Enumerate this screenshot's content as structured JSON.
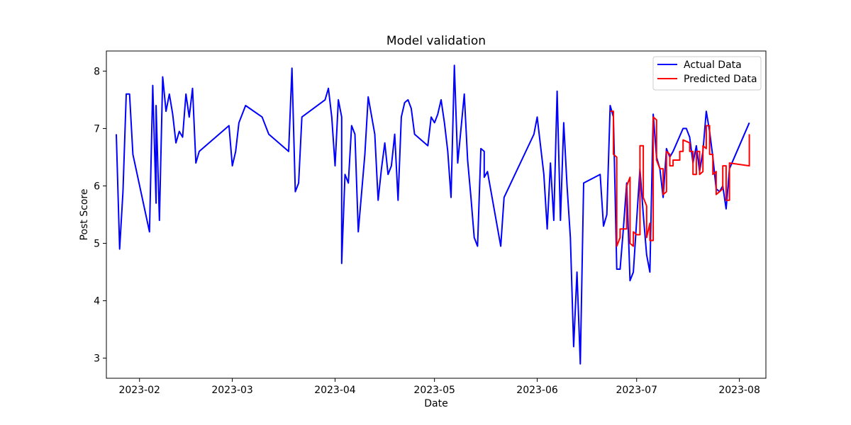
{
  "chart_data": {
    "type": "line",
    "title": "Model validation",
    "xlabel": "Date",
    "ylabel": "Post Score",
    "xlim": [
      "2023-01-22",
      "2023-08-09"
    ],
    "ylim": [
      2.65,
      8.35
    ],
    "x_ticks": [
      "2023-02-01",
      "2023-03-01",
      "2023-04-01",
      "2023-05-01",
      "2023-06-01",
      "2023-07-01",
      "2023-08-01"
    ],
    "x_tick_labels": [
      "2023-02",
      "2023-03",
      "2023-04",
      "2023-05",
      "2023-06",
      "2023-07",
      "2023-08"
    ],
    "y_ticks": [
      3,
      4,
      5,
      6,
      7,
      8
    ],
    "y_tick_labels": [
      "3",
      "4",
      "5",
      "6",
      "7",
      "8"
    ],
    "grid": false,
    "legend_position": "upper right",
    "series": [
      {
        "name": "Actual Data",
        "color": "#0000ff",
        "points": [
          [
            "2023-01-25",
            6.9
          ],
          [
            "2023-01-26",
            4.9
          ],
          [
            "2023-01-27",
            5.9
          ],
          [
            "2023-01-28",
            7.6
          ],
          [
            "2023-01-29",
            7.6
          ],
          [
            "2023-01-30",
            6.55
          ],
          [
            "2023-02-04",
            5.2
          ],
          [
            "2023-02-05",
            7.75
          ],
          [
            "2023-02-06",
            5.7
          ],
          [
            "2023-02-06",
            7.4
          ],
          [
            "2023-02-07",
            5.4
          ],
          [
            "2023-02-08",
            7.9
          ],
          [
            "2023-02-09",
            7.3
          ],
          [
            "2023-02-10",
            7.6
          ],
          [
            "2023-02-11",
            7.25
          ],
          [
            "2023-02-12",
            6.75
          ],
          [
            "2023-02-13",
            6.95
          ],
          [
            "2023-02-14",
            6.85
          ],
          [
            "2023-02-15",
            7.6
          ],
          [
            "2023-02-16",
            7.2
          ],
          [
            "2023-02-17",
            7.7
          ],
          [
            "2023-02-18",
            6.4
          ],
          [
            "2023-02-19",
            6.6
          ],
          [
            "2023-02-28",
            7.05
          ],
          [
            "2023-03-01",
            6.35
          ],
          [
            "2023-03-02",
            6.6
          ],
          [
            "2023-03-03",
            7.1
          ],
          [
            "2023-03-05",
            7.4
          ],
          [
            "2023-03-10",
            7.2
          ],
          [
            "2023-03-12",
            6.9
          ],
          [
            "2023-03-18",
            6.6
          ],
          [
            "2023-03-19",
            8.05
          ],
          [
            "2023-03-20",
            5.9
          ],
          [
            "2023-03-21",
            6.05
          ],
          [
            "2023-03-22",
            7.2
          ],
          [
            "2023-03-29",
            7.5
          ],
          [
            "2023-03-30",
            7.7
          ],
          [
            "2023-03-31",
            7.2
          ],
          [
            "2023-04-01",
            6.35
          ],
          [
            "2023-04-02",
            7.5
          ],
          [
            "2023-04-03",
            7.2
          ],
          [
            "2023-04-03",
            4.65
          ],
          [
            "2023-04-04",
            6.2
          ],
          [
            "2023-04-05",
            6.05
          ],
          [
            "2023-04-06",
            7.05
          ],
          [
            "2023-04-07",
            6.9
          ],
          [
            "2023-04-08",
            5.2
          ],
          [
            "2023-04-10",
            6.55
          ],
          [
            "2023-04-11",
            7.55
          ],
          [
            "2023-04-13",
            6.9
          ],
          [
            "2023-04-14",
            5.75
          ],
          [
            "2023-04-15",
            6.3
          ],
          [
            "2023-04-16",
            6.75
          ],
          [
            "2023-04-17",
            6.2
          ],
          [
            "2023-04-18",
            6.35
          ],
          [
            "2023-04-19",
            6.9
          ],
          [
            "2023-04-20",
            5.75
          ],
          [
            "2023-04-21",
            7.2
          ],
          [
            "2023-04-22",
            7.45
          ],
          [
            "2023-04-23",
            7.5
          ],
          [
            "2023-04-24",
            7.35
          ],
          [
            "2023-04-25",
            6.9
          ],
          [
            "2023-04-29",
            6.7
          ],
          [
            "2023-04-30",
            7.2
          ],
          [
            "2023-05-01",
            7.1
          ],
          [
            "2023-05-02",
            7.25
          ],
          [
            "2023-05-03",
            7.5
          ],
          [
            "2023-05-04",
            7.1
          ],
          [
            "2023-05-05",
            6.6
          ],
          [
            "2023-05-06",
            5.8
          ],
          [
            "2023-05-07",
            8.1
          ],
          [
            "2023-05-08",
            6.4
          ],
          [
            "2023-05-09",
            7.0
          ],
          [
            "2023-05-10",
            7.6
          ],
          [
            "2023-05-11",
            6.45
          ],
          [
            "2023-05-12",
            5.8
          ],
          [
            "2023-05-13",
            5.1
          ],
          [
            "2023-05-14",
            4.95
          ],
          [
            "2023-05-15",
            6.65
          ],
          [
            "2023-05-16",
            6.6
          ],
          [
            "2023-05-16",
            6.15
          ],
          [
            "2023-05-17",
            6.25
          ],
          [
            "2023-05-21",
            4.95
          ],
          [
            "2023-05-22",
            5.8
          ],
          [
            "2023-05-31",
            6.9
          ],
          [
            "2023-06-01",
            7.2
          ],
          [
            "2023-06-03",
            6.2
          ],
          [
            "2023-06-04",
            5.25
          ],
          [
            "2023-06-05",
            6.4
          ],
          [
            "2023-06-06",
            5.4
          ],
          [
            "2023-06-07",
            7.65
          ],
          [
            "2023-06-08",
            5.4
          ],
          [
            "2023-06-09",
            7.1
          ],
          [
            "2023-06-10",
            6.0
          ],
          [
            "2023-06-11",
            5.1
          ],
          [
            "2023-06-12",
            3.2
          ],
          [
            "2023-06-13",
            4.5
          ],
          [
            "2023-06-14",
            2.9
          ],
          [
            "2023-06-15",
            6.05
          ],
          [
            "2023-06-20",
            6.2
          ],
          [
            "2023-06-21",
            5.3
          ],
          [
            "2023-06-22",
            5.5
          ],
          [
            "2023-06-23",
            7.4
          ],
          [
            "2023-06-24",
            7.2
          ],
          [
            "2023-06-25",
            4.55
          ],
          [
            "2023-06-26",
            4.55
          ],
          [
            "2023-06-27",
            5.25
          ],
          [
            "2023-06-28",
            6.05
          ],
          [
            "2023-06-29",
            4.35
          ],
          [
            "2023-06-30",
            4.5
          ],
          [
            "2023-07-02",
            6.3
          ],
          [
            "2023-07-03",
            5.5
          ],
          [
            "2023-07-04",
            4.8
          ],
          [
            "2023-07-05",
            4.5
          ],
          [
            "2023-07-06",
            7.25
          ],
          [
            "2023-07-07",
            6.5
          ],
          [
            "2023-07-08",
            6.3
          ],
          [
            "2023-07-09",
            5.8
          ],
          [
            "2023-07-10",
            6.65
          ],
          [
            "2023-07-11",
            6.5
          ],
          [
            "2023-07-12",
            6.6
          ],
          [
            "2023-07-15",
            7.0
          ],
          [
            "2023-07-16",
            7.0
          ],
          [
            "2023-07-17",
            6.85
          ],
          [
            "2023-07-18",
            6.4
          ],
          [
            "2023-07-19",
            6.7
          ],
          [
            "2023-07-20",
            6.25
          ],
          [
            "2023-07-21",
            6.6
          ],
          [
            "2023-07-22",
            7.3
          ],
          [
            "2023-07-23",
            6.95
          ],
          [
            "2023-07-24",
            6.5
          ],
          [
            "2023-07-25",
            5.95
          ],
          [
            "2023-07-26",
            5.9
          ],
          [
            "2023-07-27",
            6.0
          ],
          [
            "2023-07-28",
            5.6
          ],
          [
            "2023-07-29",
            6.3
          ],
          [
            "2023-08-04",
            7.1
          ]
        ]
      },
      {
        "name": "Predicted Data",
        "color": "#ff0000",
        "points": [
          [
            "2023-06-23",
            7.3
          ],
          [
            "2023-06-24",
            7.3
          ],
          [
            "2023-06-24",
            6.55
          ],
          [
            "2023-06-25",
            6.5
          ],
          [
            "2023-06-25",
            4.95
          ],
          [
            "2023-06-26",
            5.1
          ],
          [
            "2023-06-26",
            5.25
          ],
          [
            "2023-06-27",
            5.25
          ],
          [
            "2023-06-27",
            5.25
          ],
          [
            "2023-06-28",
            5.25
          ],
          [
            "2023-06-28",
            6.0
          ],
          [
            "2023-06-29",
            6.15
          ],
          [
            "2023-06-29",
            5.0
          ],
          [
            "2023-06-30",
            4.95
          ],
          [
            "2023-06-30",
            5.2
          ],
          [
            "2023-07-01",
            5.15
          ],
          [
            "2023-07-02",
            5.15
          ],
          [
            "2023-07-02",
            6.7
          ],
          [
            "2023-07-03",
            6.7
          ],
          [
            "2023-07-03",
            5.8
          ],
          [
            "2023-07-04",
            5.65
          ],
          [
            "2023-07-04",
            5.1
          ],
          [
            "2023-07-05",
            5.35
          ],
          [
            "2023-07-05",
            5.3
          ],
          [
            "2023-07-05",
            5.05
          ],
          [
            "2023-07-06",
            5.05
          ],
          [
            "2023-07-06",
            7.2
          ],
          [
            "2023-07-07",
            7.15
          ],
          [
            "2023-07-07",
            6.45
          ],
          [
            "2023-07-08",
            6.3
          ],
          [
            "2023-07-09",
            6.3
          ],
          [
            "2023-07-09",
            5.85
          ],
          [
            "2023-07-10",
            5.9
          ],
          [
            "2023-07-10",
            6.6
          ],
          [
            "2023-07-11",
            6.55
          ],
          [
            "2023-07-11",
            6.35
          ],
          [
            "2023-07-12",
            6.35
          ],
          [
            "2023-07-12",
            6.45
          ],
          [
            "2023-07-13",
            6.45
          ],
          [
            "2023-07-14",
            6.45
          ],
          [
            "2023-07-14",
            6.6
          ],
          [
            "2023-07-15",
            6.6
          ],
          [
            "2023-07-15",
            6.8
          ],
          [
            "2023-07-17",
            6.75
          ],
          [
            "2023-07-17",
            6.6
          ],
          [
            "2023-07-18",
            6.6
          ],
          [
            "2023-07-18",
            6.2
          ],
          [
            "2023-07-19",
            6.2
          ],
          [
            "2023-07-19",
            6.6
          ],
          [
            "2023-07-20",
            6.6
          ],
          [
            "2023-07-20",
            6.2
          ],
          [
            "2023-07-21",
            6.25
          ],
          [
            "2023-07-21",
            6.7
          ],
          [
            "2023-07-22",
            6.65
          ],
          [
            "2023-07-22",
            7.05
          ],
          [
            "2023-07-23",
            7.05
          ],
          [
            "2023-07-23",
            6.55
          ],
          [
            "2023-07-24",
            6.55
          ],
          [
            "2023-07-24",
            6.2
          ],
          [
            "2023-07-25",
            6.25
          ],
          [
            "2023-07-25",
            5.85
          ],
          [
            "2023-07-26",
            5.9
          ],
          [
            "2023-07-27",
            5.95
          ],
          [
            "2023-07-27",
            6.35
          ],
          [
            "2023-07-28",
            6.35
          ],
          [
            "2023-07-28",
            5.75
          ],
          [
            "2023-07-29",
            5.75
          ],
          [
            "2023-07-29",
            6.4
          ],
          [
            "2023-08-04",
            6.35
          ],
          [
            "2023-08-04",
            6.9
          ]
        ]
      }
    ]
  }
}
